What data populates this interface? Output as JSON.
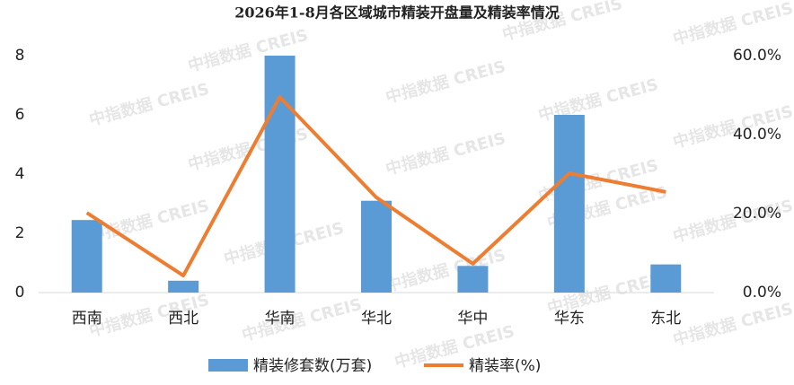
{
  "chart_data": {
    "type": "bar",
    "title": "2026年1-8月各区域城市精装开盘量及精装率情况",
    "watermark": "中指数据 CREIS",
    "categories": [
      "西南",
      "西北",
      "华南",
      "华北",
      "华中",
      "华东",
      "东北"
    ],
    "series": [
      {
        "name": "精装修套数(万套)",
        "type": "bar",
        "color": "#5b9bd5",
        "values": [
          2.45,
          0.4,
          8.0,
          3.1,
          0.9,
          6.0,
          0.95
        ]
      },
      {
        "name": "精装率(%)",
        "type": "line",
        "axis": "y2",
        "color": "#ed7d31",
        "values": [
          20.2,
          4.3,
          49.5,
          24.1,
          7.3,
          30.2,
          25.5
        ]
      }
    ],
    "ylim": [
      0,
      8
    ],
    "yticks": [
      0,
      2,
      4,
      6,
      8
    ],
    "y2lim": [
      0,
      60
    ],
    "y2ticks": [
      {
        "value": 0,
        "label": "0.0%"
      },
      {
        "value": 20,
        "label": "20.0%"
      },
      {
        "value": 40,
        "label": "40.0%"
      },
      {
        "value": 60,
        "label": "60.0%"
      }
    ],
    "grid": false,
    "legend": "bottom"
  }
}
